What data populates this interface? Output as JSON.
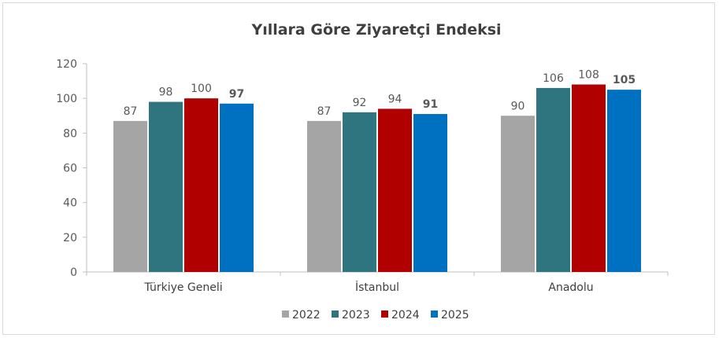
{
  "chart_data": {
    "type": "bar",
    "title": "Yıllara Göre Ziyaretçi Endeksi",
    "categories": [
      "Türkiye Geneli",
      "İstanbul",
      "Anadolu"
    ],
    "series": [
      {
        "name": "2022",
        "values": [
          87,
          87,
          90
        ],
        "color": "#a5a5a5"
      },
      {
        "name": "2023",
        "values": [
          98,
          92,
          106
        ],
        "color": "#2e7580"
      },
      {
        "name": "2024",
        "values": [
          100,
          94,
          108
        ],
        "color": "#b00000"
      },
      {
        "name": "2025",
        "values": [
          97,
          91,
          105
        ],
        "color": "#0070c0"
      }
    ],
    "ylim": [
      0,
      120
    ],
    "yticks": [
      0,
      20,
      40,
      60,
      80,
      100,
      120
    ],
    "bold_series": "2025",
    "grid": false,
    "legend_position": "bottom"
  }
}
